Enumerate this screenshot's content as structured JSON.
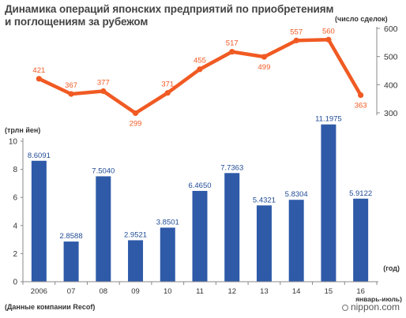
{
  "title": {
    "line1": "Динамика операций японских предприятий по приобретениям",
    "line2": "и поглощениям за рубежом"
  },
  "source": "(Данные компании Recof)",
  "brand": "nippon.com",
  "colors": {
    "line": "#f05a23",
    "bar": "#2e5aa8",
    "axis": "#888888",
    "bar_label": "#1f4a96"
  },
  "chart_data": [
    {
      "type": "line",
      "unit_label": "(число сделок)",
      "categories": [
        "2006",
        "07",
        "08",
        "09",
        "10",
        "11",
        "12",
        "13",
        "14",
        "15",
        "16"
      ],
      "values": [
        421,
        367,
        377,
        299,
        371,
        455,
        517,
        499,
        557,
        560,
        363
      ],
      "value_labels": [
        "421",
        "367",
        "377",
        "299",
        "371",
        "455",
        "517",
        "499",
        "557",
        "560",
        "363"
      ],
      "ylim": [
        300,
        600
      ],
      "y_ticks": [
        "300",
        "400",
        "500",
        "600"
      ],
      "axis_side": "right"
    },
    {
      "type": "bar",
      "unit_label": "(трлн йен)",
      "categories": [
        "2006",
        "07",
        "08",
        "09",
        "10",
        "11",
        "12",
        "13",
        "14",
        "15",
        "16"
      ],
      "x_ticks": [
        "2006",
        "07",
        "08",
        "09",
        "10",
        "11",
        "12",
        "13",
        "14",
        "15",
        "16"
      ],
      "x_note_year": "(год)",
      "x_note_period": "январь-июль)",
      "values": [
        8.6091,
        2.8588,
        7.504,
        2.9521,
        3.8501,
        6.465,
        7.7363,
        5.4321,
        5.8304,
        11.1975,
        5.9122
      ],
      "value_labels": [
        "8.6091",
        "2.8588",
        "7.5040",
        "2.9521",
        "3.8501",
        "6.4650",
        "7.7363",
        "5.4321",
        "5.8304",
        "11.1975",
        "5.9122"
      ],
      "ylim": [
        0,
        10
      ],
      "y_ticks": [
        "0",
        "2",
        "4",
        "6",
        "8",
        "10"
      ],
      "axis_side": "left"
    }
  ]
}
